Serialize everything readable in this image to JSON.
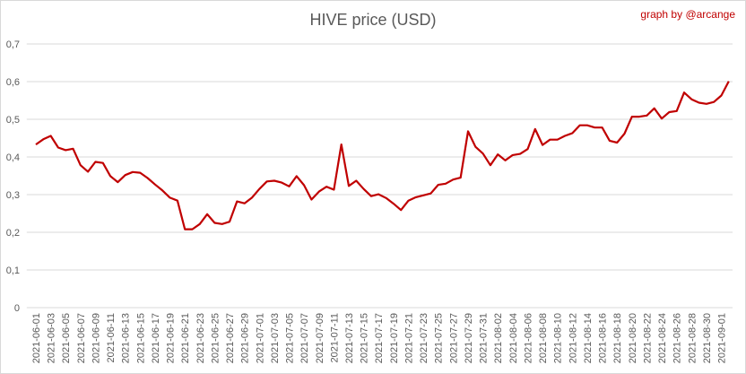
{
  "chart_data": {
    "type": "line",
    "title": "HIVE price (USD)",
    "credit": "graph by @arcange",
    "xlabel": "",
    "ylabel": "",
    "ylim": [
      0,
      0.7
    ],
    "yticks": [
      "0",
      "0,1",
      "0,2",
      "0,3",
      "0,4",
      "0,5",
      "0,6",
      "0,7"
    ],
    "grid": true,
    "legend": "none",
    "line_color": "#c00000",
    "x": [
      "2021-06-01",
      "2021-06-02",
      "2021-06-03",
      "2021-06-04",
      "2021-06-05",
      "2021-06-06",
      "2021-06-07",
      "2021-06-08",
      "2021-06-09",
      "2021-06-10",
      "2021-06-11",
      "2021-06-12",
      "2021-06-13",
      "2021-06-14",
      "2021-06-15",
      "2021-06-16",
      "2021-06-17",
      "2021-06-18",
      "2021-06-19",
      "2021-06-20",
      "2021-06-21",
      "2021-06-22",
      "2021-06-23",
      "2021-06-24",
      "2021-06-25",
      "2021-06-26",
      "2021-06-27",
      "2021-06-28",
      "2021-06-29",
      "2021-06-30",
      "2021-07-01",
      "2021-07-02",
      "2021-07-03",
      "2021-07-04",
      "2021-07-05",
      "2021-07-06",
      "2021-07-07",
      "2021-07-08",
      "2021-07-09",
      "2021-07-10",
      "2021-07-11",
      "2021-07-12",
      "2021-07-13",
      "2021-07-14",
      "2021-07-15",
      "2021-07-16",
      "2021-07-17",
      "2021-07-18",
      "2021-07-19",
      "2021-07-20",
      "2021-07-21",
      "2021-07-22",
      "2021-07-23",
      "2021-07-24",
      "2021-07-25",
      "2021-07-26",
      "2021-07-27",
      "2021-07-28",
      "2021-07-29",
      "2021-07-30",
      "2021-07-31",
      "2021-08-01",
      "2021-08-02",
      "2021-08-03",
      "2021-08-04",
      "2021-08-05",
      "2021-08-06",
      "2021-08-07",
      "2021-08-08",
      "2021-08-09",
      "2021-08-10",
      "2021-08-11",
      "2021-08-12",
      "2021-08-13",
      "2021-08-14",
      "2021-08-15",
      "2021-08-16",
      "2021-08-17",
      "2021-08-18",
      "2021-08-19",
      "2021-08-20",
      "2021-08-21",
      "2021-08-22",
      "2021-08-23",
      "2021-08-24",
      "2021-08-25",
      "2021-08-26",
      "2021-08-27",
      "2021-08-28",
      "2021-08-29",
      "2021-08-30",
      "2021-08-31",
      "2021-09-01",
      "2021-09-02"
    ],
    "values": [
      0.433,
      0.447,
      0.456,
      0.425,
      0.418,
      0.422,
      0.378,
      0.361,
      0.387,
      0.384,
      0.349,
      0.333,
      0.352,
      0.36,
      0.358,
      0.344,
      0.327,
      0.311,
      0.292,
      0.284,
      0.208,
      0.208,
      0.222,
      0.248,
      0.225,
      0.222,
      0.228,
      0.282,
      0.277,
      0.292,
      0.315,
      0.335,
      0.337,
      0.332,
      0.322,
      0.349,
      0.325,
      0.287,
      0.308,
      0.321,
      0.313,
      0.433,
      0.323,
      0.337,
      0.315,
      0.296,
      0.301,
      0.291,
      0.276,
      0.259,
      0.284,
      0.293,
      0.298,
      0.303,
      0.326,
      0.329,
      0.34,
      0.345,
      0.468,
      0.427,
      0.409,
      0.378,
      0.407,
      0.391,
      0.405,
      0.408,
      0.421,
      0.474,
      0.432,
      0.446,
      0.446,
      0.456,
      0.463,
      0.484,
      0.484,
      0.478,
      0.478,
      0.443,
      0.438,
      0.462,
      0.507,
      0.507,
      0.51,
      0.529,
      0.502,
      0.519,
      0.522,
      0.571,
      0.553,
      0.544,
      0.541,
      0.546,
      0.563,
      0.601
    ],
    "label_every": 2
  }
}
